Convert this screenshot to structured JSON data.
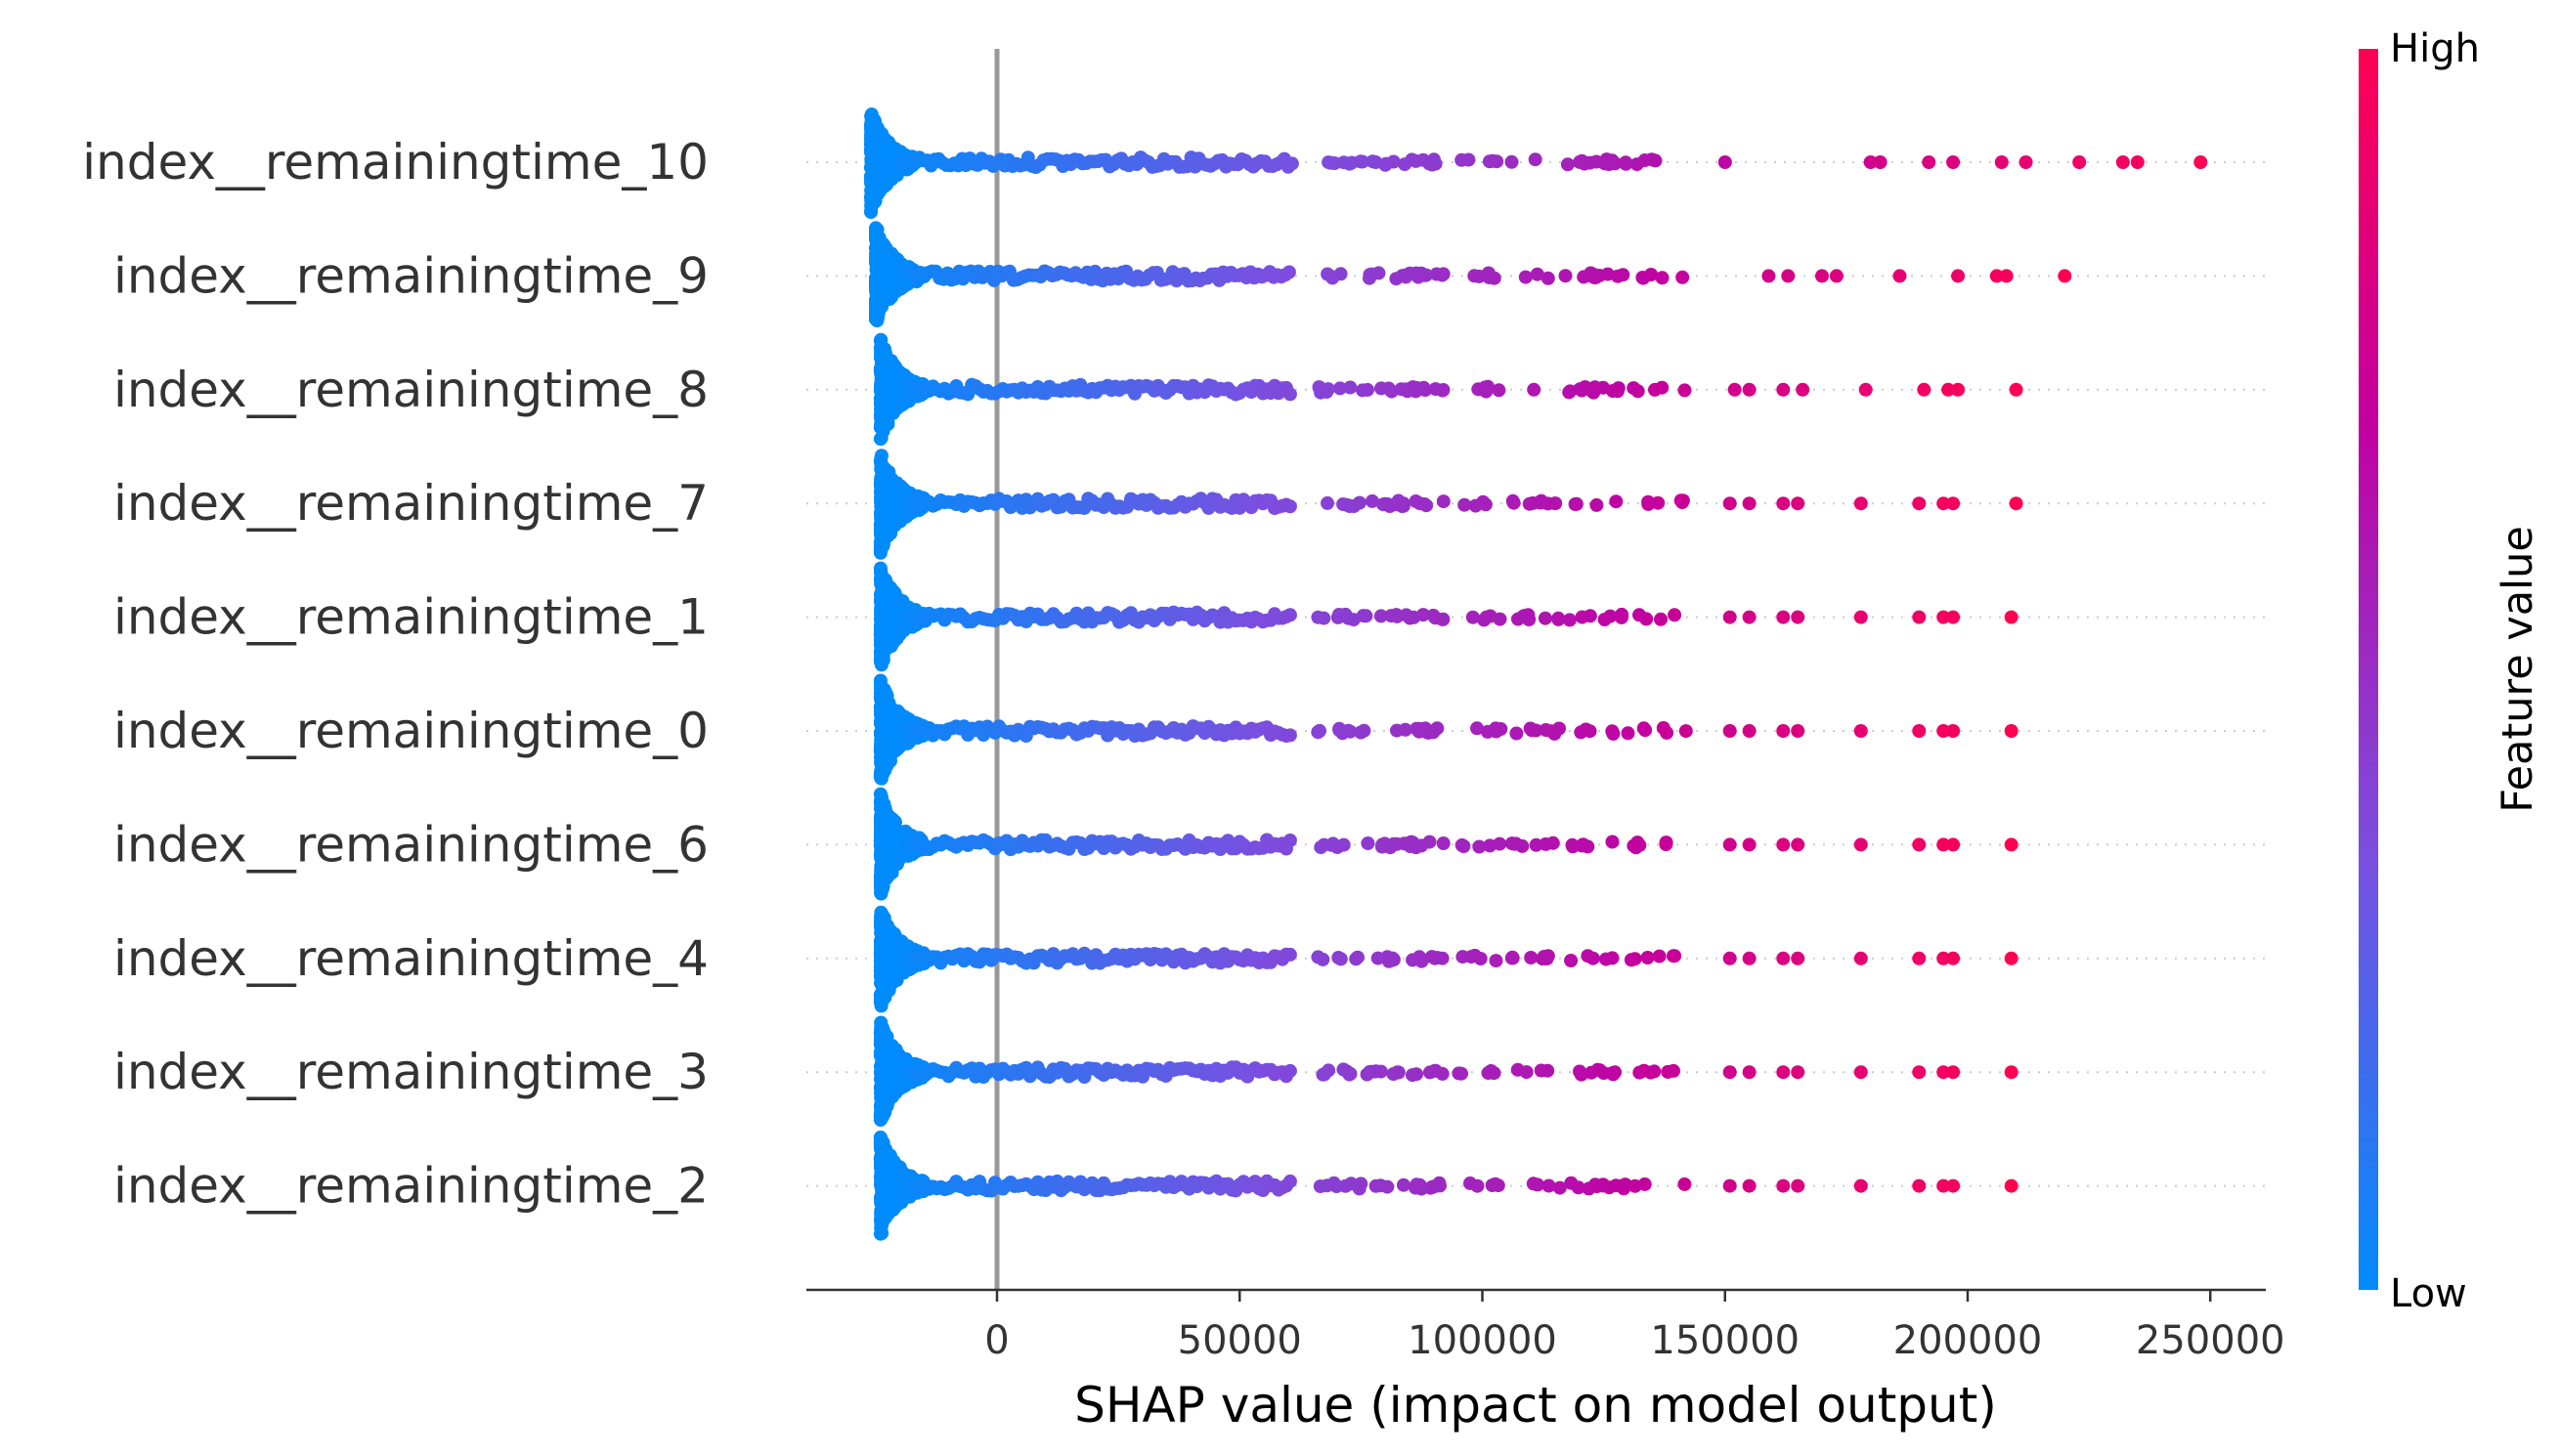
{
  "chart_data": {
    "type": "scatter",
    "subtype": "shap-beeswarm",
    "xlabel": "SHAP value (impact on model output)",
    "xticks": [
      0,
      50000,
      100000,
      150000,
      200000,
      250000
    ],
    "xtick_labels": [
      "0",
      "50000",
      "100000",
      "150000",
      "200000",
      "250000"
    ],
    "xlim": [
      -40000,
      262000
    ],
    "grid": false,
    "features": [
      "index__remainingtime_10",
      "index__remainingtime_9",
      "index__remainingtime_8",
      "index__remainingtime_7",
      "index__remainingtime_1",
      "index__remainingtime_0",
      "index__remainingtime_6",
      "index__remainingtime_4",
      "index__remainingtime_3",
      "index__remainingtime_2"
    ],
    "series": [
      {
        "feature": "index__remainingtime_10",
        "min": -26000,
        "max": 248000,
        "outliers": [
          150000,
          180000,
          182000,
          192000,
          197000,
          207000,
          212000,
          223000,
          232000,
          235000,
          248000
        ]
      },
      {
        "feature": "index__remainingtime_9",
        "min": -25000,
        "max": 220000,
        "outliers": [
          159000,
          163000,
          170000,
          173000,
          186000,
          198000,
          206000,
          208000,
          220000
        ]
      },
      {
        "feature": "index__remainingtime_8",
        "min": -24000,
        "max": 210000,
        "outliers": [
          152000,
          155000,
          162000,
          166000,
          179000,
          191000,
          196000,
          198000,
          210000
        ]
      },
      {
        "feature": "index__remainingtime_7",
        "min": -24000,
        "max": 210000,
        "outliers": [
          151000,
          155000,
          162000,
          165000,
          178000,
          190000,
          195000,
          197000,
          210000
        ]
      },
      {
        "feature": "index__remainingtime_1",
        "min": -24000,
        "max": 209000,
        "outliers": [
          151000,
          155000,
          162000,
          165000,
          178000,
          190000,
          195000,
          197000,
          209000
        ]
      },
      {
        "feature": "index__remainingtime_0",
        "min": -24000,
        "max": 209000,
        "outliers": [
          151000,
          155000,
          162000,
          165000,
          178000,
          190000,
          195000,
          197000,
          209000
        ]
      },
      {
        "feature": "index__remainingtime_6",
        "min": -24000,
        "max": 209000,
        "outliers": [
          151000,
          155000,
          162000,
          165000,
          178000,
          190000,
          195000,
          197000,
          209000
        ]
      },
      {
        "feature": "index__remainingtime_4",
        "min": -24000,
        "max": 209000,
        "outliers": [
          151000,
          155000,
          162000,
          165000,
          178000,
          190000,
          195000,
          197000,
          209000
        ]
      },
      {
        "feature": "index__remainingtime_3",
        "min": -24000,
        "max": 209000,
        "outliers": [
          151000,
          155000,
          162000,
          165000,
          178000,
          190000,
          195000,
          197000,
          209000
        ]
      },
      {
        "feature": "index__remainingtime_2",
        "min": -24000,
        "max": 209000,
        "outliers": [
          151000,
          155000,
          162000,
          165000,
          178000,
          190000,
          195000,
          197000,
          209000
        ]
      }
    ],
    "colorbar": {
      "title": "Feature value",
      "high_label": "High",
      "low_label": "Low",
      "colors": [
        "#008bfb",
        "#7a4fe0",
        "#c200a0",
        "#ff0052"
      ]
    },
    "colors": {
      "zero_line": "#999999",
      "axis": "#333333",
      "text": "#333333"
    }
  }
}
